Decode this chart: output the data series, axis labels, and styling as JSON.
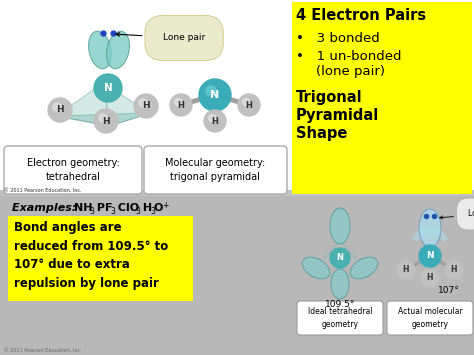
{
  "bg_top": "#f0f0f0",
  "bg_bottom": "#b0b0b0",
  "yellow_box_color": "#ffff00",
  "yellow_box2_color": "#ffff00",
  "title_text": "4 Electron Pairs",
  "bullet1": "3 bonded",
  "bullet2": "1 un-bonded",
  "bullet2b": "    (lone pair)",
  "bold_text": "Trigonal\nPyramidal\nShape",
  "eg_text": "Electron geometry:\ntetrahedral",
  "mg_text": "Molecular geometry:\ntrigonal pyramidal",
  "bond_angle_text": "Bond angles are\nreduced from 109.5° to\n107° due to extra\nrepulsion by lone pair",
  "angle1_text": "109.5°",
  "angle2_text": "107°",
  "label1": "Ideal tetrahedral\ngeometry",
  "label2": "Actual molecular\ngeometry",
  "lone_pair_label": "Lone pair",
  "lone_pair_label2": "Lone pair",
  "copyright": "© 2011 Pearson Education, Inc."
}
